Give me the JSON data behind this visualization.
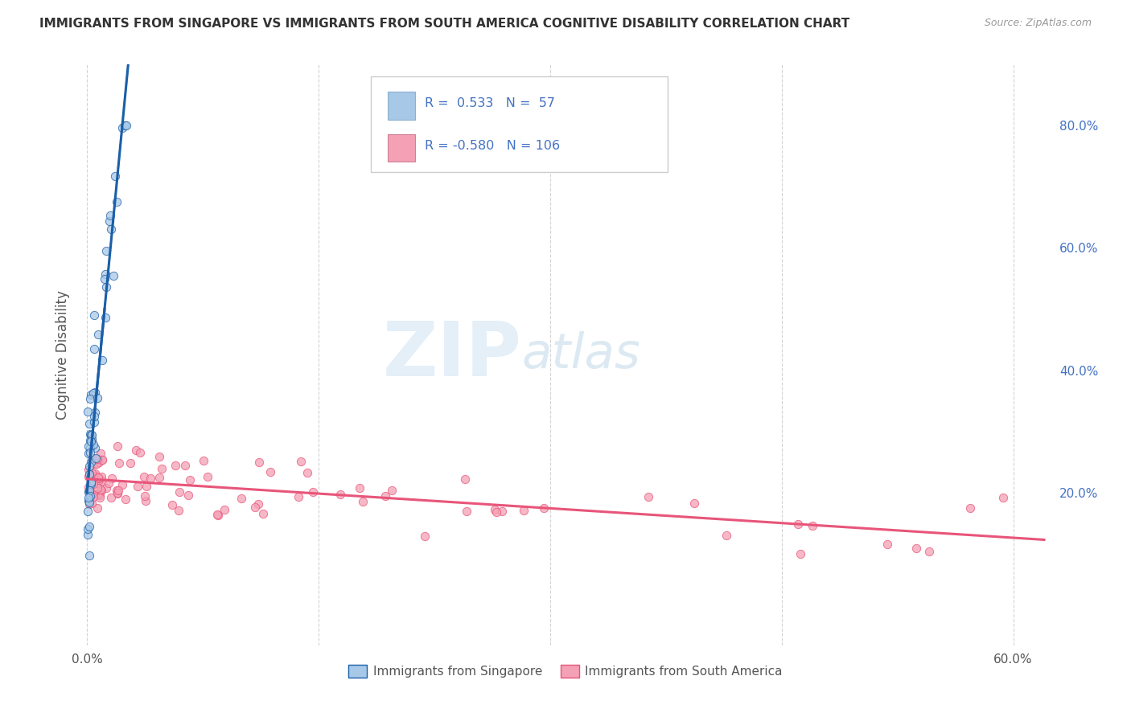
{
  "title": "IMMIGRANTS FROM SINGAPORE VS IMMIGRANTS FROM SOUTH AMERICA COGNITIVE DISABILITY CORRELATION CHART",
  "source": "Source: ZipAtlas.com",
  "ylabel": "Cognitive Disability",
  "right_yticks": [
    "20.0%",
    "40.0%",
    "60.0%",
    "80.0%"
  ],
  "right_ytick_vals": [
    0.2,
    0.4,
    0.6,
    0.8
  ],
  "xlim": [
    -0.005,
    0.625
  ],
  "ylim": [
    -0.05,
    0.9
  ],
  "watermark_zip": "ZIP",
  "watermark_atlas": "atlas",
  "legend1_label": "Immigrants from Singapore",
  "legend2_label": "Immigrants from South America",
  "r1": "0.533",
  "n1": "57",
  "r2": "-0.580",
  "n2": "106",
  "color_blue": "#a8c8e8",
  "color_pink": "#f4a0b5",
  "color_line_blue": "#1a5fa8",
  "color_line_pink": "#e8557a",
  "background": "#ffffff",
  "grid_color": "#c8c8c8",
  "title_color": "#333333",
  "axis_label_color": "#555555",
  "right_axis_color": "#4472c4",
  "legend_text_color": "#000000",
  "legend_stat_color": "#4472c4"
}
